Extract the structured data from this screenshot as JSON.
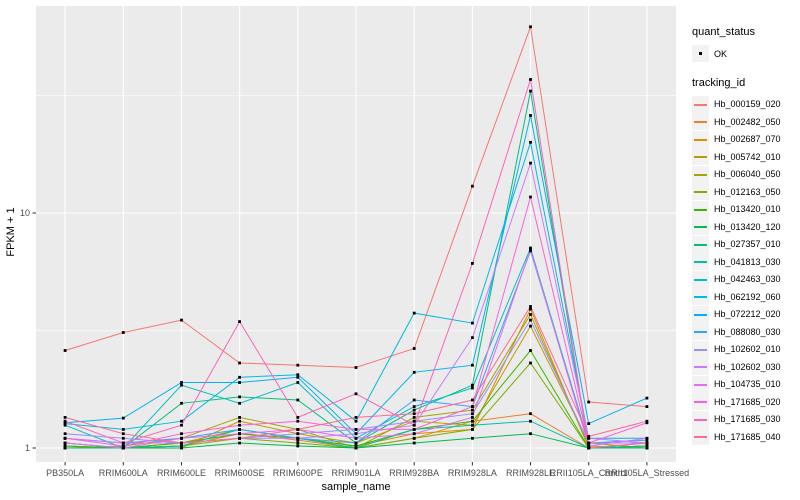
{
  "figure": {
    "y_axis_title": "FPKM + 1",
    "x_axis_title": "sample_name",
    "legend": {
      "quant_title": "quant_status",
      "quant_label": "OK",
      "tracking_title": "tracking_id"
    }
  },
  "colors": {
    "panel_bg": "#EBEBEB",
    "grid": "#FFFFFF",
    "tick_text": "#4D4D4D",
    "tick_mark": "#333333",
    "point": "#000000",
    "legend_key_bg": "#F2F2F2"
  },
  "chart_data": {
    "type": "line",
    "title": "",
    "xlabel": "sample_name",
    "ylabel": "FPKM + 1",
    "y_scale": "log10",
    "y_ticks": [
      "1",
      "10"
    ],
    "y_tick_values": [
      1,
      10
    ],
    "y_minor_values": [
      3.1623,
      31.623
    ],
    "ylim": [
      0.93,
      76
    ],
    "grid": "on",
    "legend_position": "right",
    "point_legend": {
      "title": "quant_status",
      "items": [
        "OK"
      ],
      "symbol": "black-point"
    },
    "color_legend_title": "tracking_id",
    "categories": [
      "PB350LA",
      "RRIM600LA",
      "RRIM600LE",
      "RRIM600SE",
      "RRIM600PE",
      "RRIM901LA",
      "RRIM928BA",
      "RRIM928LA",
      "RRIM928LE",
      "RRII105LA_Control",
      "RRII105LA_Stressed"
    ],
    "series": [
      {
        "name": "Hb_000159_020",
        "color": "#F8766D",
        "values": [
          2.6,
          3.1,
          3.5,
          2.3,
          2.25,
          2.2,
          2.65,
          13.0,
          62.0,
          1.57,
          1.5
        ]
      },
      {
        "name": "Hb_002482_050",
        "color": "#EA8331",
        "values": [
          1.05,
          1.0,
          1.02,
          1.15,
          1.08,
          1.0,
          1.1,
          1.3,
          1.4,
          1.0,
          1.02
        ]
      },
      {
        "name": "Hb_002687_070",
        "color": "#D89000",
        "values": [
          1.0,
          1.0,
          1.05,
          1.2,
          1.1,
          1.02,
          1.15,
          1.2,
          3.9,
          1.0,
          1.05
        ]
      },
      {
        "name": "Hb_005742_010",
        "color": "#C09B00",
        "values": [
          1.02,
          1.0,
          1.0,
          1.3,
          1.15,
          1.05,
          1.3,
          1.25,
          3.3,
          1.05,
          1.0
        ]
      },
      {
        "name": "Hb_006040_050",
        "color": "#A3A500",
        "values": [
          1.0,
          1.02,
          1.1,
          1.35,
          1.2,
          1.0,
          1.35,
          1.45,
          3.7,
          1.02,
          1.0
        ]
      },
      {
        "name": "Hb_012163_050",
        "color": "#7CAE00",
        "values": [
          1.0,
          1.0,
          1.02,
          1.1,
          1.05,
          1.0,
          1.1,
          1.2,
          2.3,
          1.0,
          1.0
        ]
      },
      {
        "name": "Hb_013420_010",
        "color": "#39B600",
        "values": [
          1.02,
          1.0,
          1.05,
          1.15,
          1.1,
          1.02,
          1.2,
          1.3,
          2.6,
          1.0,
          1.02
        ]
      },
      {
        "name": "Hb_013420_120",
        "color": "#00BB4E",
        "values": [
          1.0,
          1.0,
          1.0,
          1.05,
          1.02,
          1.0,
          1.05,
          1.1,
          1.15,
          1.0,
          1.0
        ]
      },
      {
        "name": "Hb_027357_010",
        "color": "#00BF7D",
        "values": [
          1.05,
          1.0,
          1.55,
          1.65,
          1.6,
          1.05,
          1.45,
          1.85,
          33.0,
          1.0,
          1.02
        ]
      },
      {
        "name": "Hb_041813_030",
        "color": "#00C1A3",
        "values": [
          1.0,
          1.0,
          1.02,
          1.2,
          1.1,
          1.0,
          1.2,
          1.25,
          1.3,
          1.0,
          1.0
        ]
      },
      {
        "name": "Hb_042463_030",
        "color": "#00BFC4",
        "values": [
          1.25,
          1.0,
          1.85,
          1.55,
          1.9,
          1.1,
          1.5,
          1.8,
          7.1,
          1.05,
          1.05
        ]
      },
      {
        "name": "Hb_062192_060",
        "color": "#00BAE0",
        "values": [
          1.27,
          1.2,
          1.3,
          2.0,
          2.05,
          1.3,
          3.75,
          3.4,
          20.0,
          1.1,
          1.1
        ]
      },
      {
        "name": "Hb_072212_020",
        "color": "#00B0F6",
        "values": [
          1.28,
          1.34,
          1.9,
          1.9,
          2.0,
          1.15,
          2.1,
          2.25,
          26.0,
          1.27,
          1.63
        ]
      },
      {
        "name": "Hb_088080_030",
        "color": "#35A2FF",
        "values": [
          1.1,
          1.05,
          1.1,
          1.2,
          1.1,
          1.05,
          1.6,
          1.5,
          6.9,
          1.05,
          1.08
        ]
      },
      {
        "name": "Hb_102602_010",
        "color": "#9590FF",
        "values": [
          1.15,
          1.1,
          1.05,
          1.1,
          1.15,
          1.2,
          1.3,
          1.4,
          3.5,
          1.05,
          1.05
        ]
      },
      {
        "name": "Hb_102602_030",
        "color": "#C77CFF",
        "values": [
          1.1,
          1.05,
          1.05,
          1.1,
          1.1,
          1.15,
          1.25,
          2.95,
          16.3,
          1.1,
          1.05
        ]
      },
      {
        "name": "Hb_104735_010",
        "color": "#E76BF3",
        "values": [
          1.05,
          1.0,
          1.1,
          1.15,
          1.2,
          1.1,
          1.15,
          1.35,
          7.0,
          1.02,
          1.1
        ]
      },
      {
        "name": "Hb_171685_020",
        "color": "#FA62DB",
        "values": [
          1.1,
          1.02,
          1.15,
          1.25,
          1.3,
          1.2,
          1.2,
          1.5,
          11.7,
          1.05,
          1.28
        ]
      },
      {
        "name": "Hb_171685_030",
        "color": "#FF62BC",
        "values": [
          1.3,
          1.05,
          1.25,
          3.45,
          1.35,
          1.7,
          1.25,
          6.1,
          37.0,
          1.0,
          1.05
        ]
      },
      {
        "name": "Hb_171685_040",
        "color": "#FF6A98",
        "values": [
          1.35,
          1.15,
          1.05,
          1.1,
          1.2,
          1.35,
          1.4,
          1.6,
          4.0,
          1.12,
          1.3
        ]
      }
    ]
  }
}
